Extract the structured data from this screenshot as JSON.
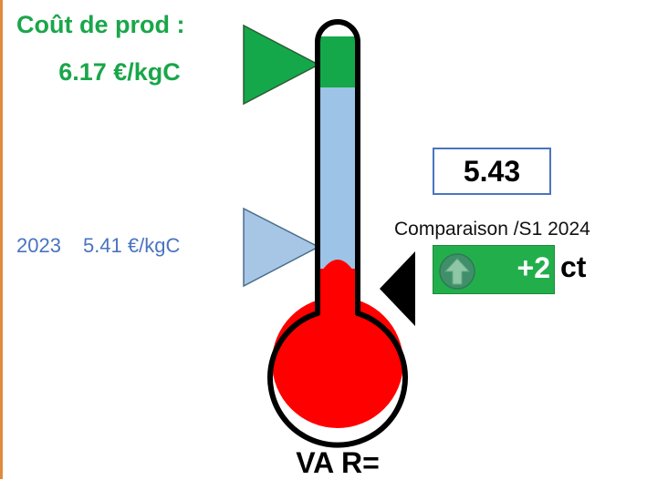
{
  "cost": {
    "title": "Coût de prod :",
    "value": "6.17 €/kgC",
    "color": "#1aa64a"
  },
  "reference": {
    "year": "2023",
    "value": "5.41 €/kgC",
    "color": "#4a74c0"
  },
  "current": {
    "value": "5.43"
  },
  "comparison": {
    "label": "Comparaison /S1 2024",
    "delta": "+2",
    "unit": "ct",
    "arrow_icon": "arrow-up-icon"
  },
  "footer": {
    "label": "VA R="
  },
  "thermometer": {
    "colors": {
      "green": "#14a84a",
      "blue": "#9dc3e6",
      "red": "#ff0000",
      "outline": "#000000"
    }
  }
}
